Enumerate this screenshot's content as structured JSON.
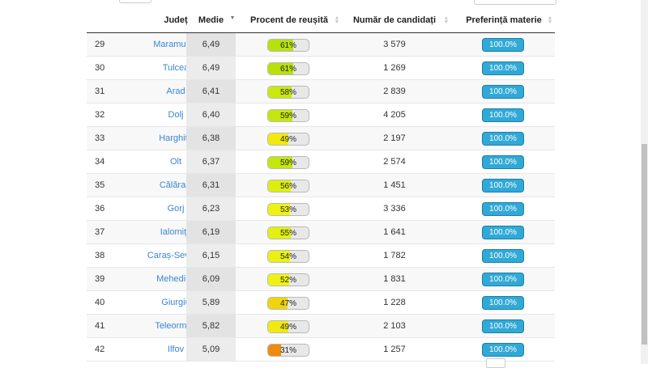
{
  "table": {
    "headers": {
      "county": "Județ",
      "average": "Medie",
      "pass_rate": "Procent de reușită",
      "candidates": "Număr de candidați",
      "subject_preference": "Preferință materie"
    },
    "colors": {
      "link": "#3a85d3",
      "pref_bar": "#31a9d6",
      "high": "#b8e10a",
      "mid": "#f2ee16",
      "low_mid": "#f0d40c",
      "low": "#f08a0c"
    },
    "rows": [
      {
        "rank": "29",
        "county": "Maramureș",
        "average": "6,49",
        "pass_rate": "61%",
        "pass_value": 61,
        "pass_color": "#b8e10a",
        "candidates": "3 579",
        "preference": "100.0%"
      },
      {
        "rank": "30",
        "county": "Tulcea",
        "average": "6,49",
        "pass_rate": "61%",
        "pass_value": 61,
        "pass_color": "#b8e10a",
        "candidates": "1 269",
        "preference": "100.0%"
      },
      {
        "rank": "31",
        "county": "Arad",
        "average": "6,41",
        "pass_rate": "58%",
        "pass_value": 58,
        "pass_color": "#c9e80e",
        "candidates": "2 839",
        "preference": "100.0%"
      },
      {
        "rank": "32",
        "county": "Dolj",
        "average": "6,40",
        "pass_rate": "59%",
        "pass_value": 59,
        "pass_color": "#c4e60c",
        "candidates": "4 205",
        "preference": "100.0%"
      },
      {
        "rank": "33",
        "county": "Harghita",
        "average": "6,38",
        "pass_rate": "49%",
        "pass_value": 49,
        "pass_color": "#f2e90f",
        "candidates": "2 197",
        "preference": "100.0%"
      },
      {
        "rank": "34",
        "county": "Olt",
        "average": "6,37",
        "pass_rate": "59%",
        "pass_value": 59,
        "pass_color": "#c4e60c",
        "candidates": "2 574",
        "preference": "100.0%"
      },
      {
        "rank": "35",
        "county": "Călărași",
        "average": "6,31",
        "pass_rate": "56%",
        "pass_value": 56,
        "pass_color": "#dcee10",
        "candidates": "1 451",
        "preference": "100.0%"
      },
      {
        "rank": "36",
        "county": "Gorj",
        "average": "6,23",
        "pass_rate": "53%",
        "pass_value": 53,
        "pass_color": "#ecf214",
        "candidates": "3 336",
        "preference": "100.0%"
      },
      {
        "rank": "37",
        "county": "Ialomița",
        "average": "6,19",
        "pass_rate": "55%",
        "pass_value": 55,
        "pass_color": "#e2f012",
        "candidates": "1 641",
        "preference": "100.0%"
      },
      {
        "rank": "38",
        "county": "Caraș-Severin",
        "average": "6,15",
        "pass_rate": "54%",
        "pass_value": 54,
        "pass_color": "#e8f113",
        "candidates": "1 782",
        "preference": "100.0%"
      },
      {
        "rank": "39",
        "county": "Mehedinți",
        "average": "6,09",
        "pass_rate": "52%",
        "pass_value": 52,
        "pass_color": "#eef214",
        "candidates": "1 831",
        "preference": "100.0%"
      },
      {
        "rank": "40",
        "county": "Giurgiu",
        "average": "5,89",
        "pass_rate": "47%",
        "pass_value": 47,
        "pass_color": "#f0d40c",
        "candidates": "1 228",
        "preference": "100.0%"
      },
      {
        "rank": "41",
        "county": "Teleorman",
        "average": "5,82",
        "pass_rate": "49%",
        "pass_value": 49,
        "pass_color": "#f2e90f",
        "candidates": "2 103",
        "preference": "100.0%"
      },
      {
        "rank": "42",
        "county": "Ilfov",
        "average": "5,09",
        "pass_rate": "31%",
        "pass_value": 31,
        "pass_color": "#f08a0c",
        "candidates": "1 257",
        "preference": "100.0%"
      }
    ]
  }
}
